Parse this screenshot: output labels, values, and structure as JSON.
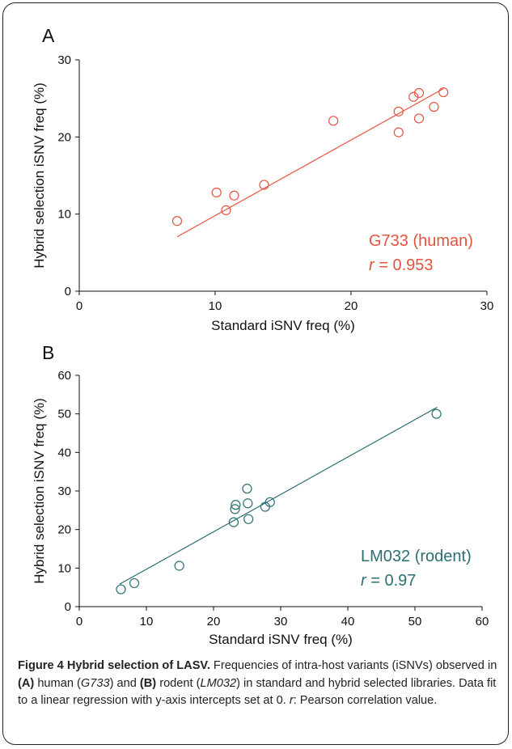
{
  "chart_data": [
    {
      "type": "scatter",
      "panel_label": "A",
      "xlabel": "Standard iSNV freq (%)",
      "ylabel": "Hybrid selection iSNV freq (%)",
      "xlim": [
        0,
        30
      ],
      "ylim": [
        0,
        30
      ],
      "xticks": [
        0,
        10,
        20,
        30
      ],
      "yticks": [
        0,
        10,
        20,
        30
      ],
      "color": "#e5533f",
      "annotation_name": "G733 (human)",
      "annotation_r_symbol": "r",
      "annotation_r_value": "= 0.953",
      "points": [
        {
          "x": 7.2,
          "y": 9.1
        },
        {
          "x": 10.1,
          "y": 12.8
        },
        {
          "x": 10.8,
          "y": 10.5
        },
        {
          "x": 11.4,
          "y": 12.4
        },
        {
          "x": 13.6,
          "y": 13.8
        },
        {
          "x": 18.7,
          "y": 22.1
        },
        {
          "x": 23.5,
          "y": 23.3
        },
        {
          "x": 23.5,
          "y": 20.6
        },
        {
          "x": 24.6,
          "y": 25.2
        },
        {
          "x": 25.0,
          "y": 25.7
        },
        {
          "x": 25.0,
          "y": 22.4
        },
        {
          "x": 26.1,
          "y": 23.9
        },
        {
          "x": 26.8,
          "y": 25.8
        }
      ],
      "fit": {
        "x0": 7.2,
        "x1": 26.8,
        "slope": 0.98
      }
    },
    {
      "type": "scatter",
      "panel_label": "B",
      "xlabel": "Standard iSNV freq (%)",
      "ylabel": "Hybrid selection iSNV freq (%)",
      "xlim": [
        0,
        60
      ],
      "ylim": [
        0,
        60
      ],
      "xticks": [
        0,
        10,
        20,
        30,
        40,
        50,
        60
      ],
      "yticks": [
        0,
        10,
        20,
        30,
        40,
        50,
        60
      ],
      "color": "#2a6f72",
      "annotation_name": "LM032 (rodent)",
      "annotation_r_symbol": "r",
      "annotation_r_value": "= 0.97",
      "points": [
        {
          "x": 6.2,
          "y": 4.5
        },
        {
          "x": 8.2,
          "y": 6.1
        },
        {
          "x": 14.9,
          "y": 10.6
        },
        {
          "x": 23.0,
          "y": 21.9
        },
        {
          "x": 23.2,
          "y": 25.3
        },
        {
          "x": 23.3,
          "y": 26.4
        },
        {
          "x": 25.0,
          "y": 30.6
        },
        {
          "x": 25.1,
          "y": 26.8
        },
        {
          "x": 25.2,
          "y": 22.7
        },
        {
          "x": 27.7,
          "y": 25.9
        },
        {
          "x": 28.4,
          "y": 27.1
        },
        {
          "x": 53.2,
          "y": 50.0
        }
      ],
      "fit": {
        "x0": 6.0,
        "x1": 53.3,
        "slope": 0.97
      }
    }
  ],
  "caption": {
    "figure_label": "Figure 4 Hybrid selection of LASV.",
    "seg1": " Frequencies of intra-host variants (iSNVs) observed in ",
    "a_label": "(A)",
    "seg2": " human (",
    "a_sample": "G733",
    "seg3": ") and ",
    "b_label": "(B)",
    "seg4": " rodent (",
    "b_sample": "LM032",
    "seg5": ") in standard and hybrid selected libraries. Data fit to a linear regression with y-axis intercepts set at 0. ",
    "r_symbol": "r",
    "seg6": ": Pearson correlation value."
  }
}
